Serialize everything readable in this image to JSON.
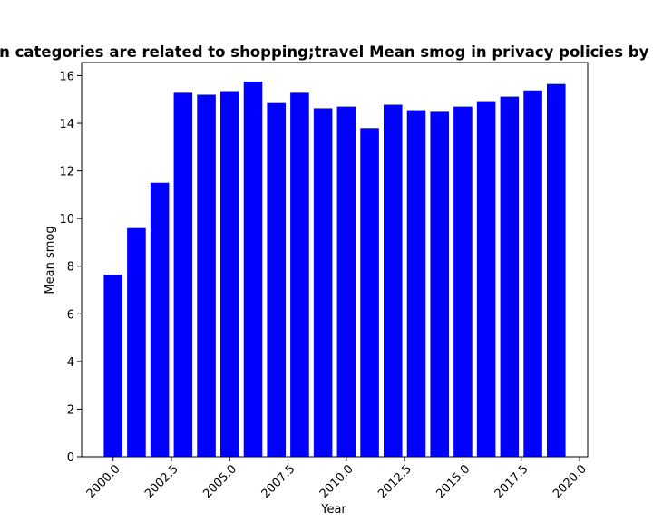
{
  "chart_data": {
    "type": "bar",
    "title": "When categories are related to shopping;travel Mean smog in privacy policies by Year",
    "xlabel": "Year",
    "ylabel": "Mean smog",
    "x": [
      2000,
      2001,
      2002,
      2003,
      2004,
      2005,
      2006,
      2007,
      2008,
      2009,
      2010,
      2011,
      2012,
      2013,
      2014,
      2015,
      2016,
      2017,
      2018,
      2019
    ],
    "values": [
      7.65,
      9.6,
      11.5,
      15.28,
      15.2,
      15.35,
      15.75,
      14.85,
      15.28,
      14.63,
      14.7,
      13.8,
      14.78,
      14.55,
      14.48,
      14.7,
      14.93,
      15.12,
      15.38,
      15.65
    ],
    "bar_color": "#0000ff",
    "xlim": [
      1998.65,
      2020.35
    ],
    "ylim": [
      0,
      16.55
    ],
    "xticks": [
      2000.0,
      2002.5,
      2005.0,
      2007.5,
      2010.0,
      2012.5,
      2015.0,
      2017.5,
      2020.0
    ],
    "xtick_labels": [
      "2000.0",
      "2002.5",
      "2005.0",
      "2007.5",
      "2010.0",
      "2012.5",
      "2015.0",
      "2017.5",
      "2020.0"
    ],
    "yticks": [
      0,
      2,
      4,
      6,
      8,
      10,
      12,
      14,
      16
    ],
    "ytick_labels": [
      "0",
      "2",
      "4",
      "6",
      "8",
      "10",
      "12",
      "14",
      "16"
    ],
    "grid": false,
    "legend": "none"
  }
}
